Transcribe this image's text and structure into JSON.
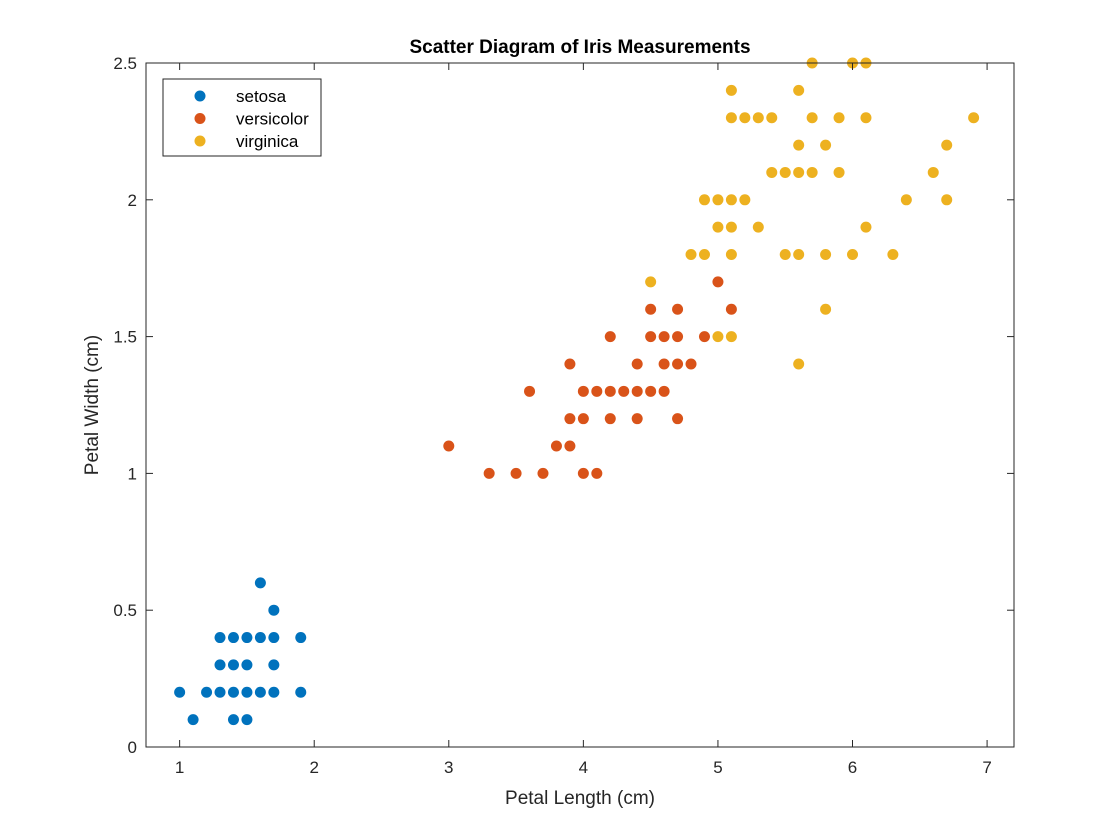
{
  "chart_data": {
    "type": "scatter",
    "title": "Scatter Diagram of Iris Measurements",
    "xlabel": "Petal Length (cm)",
    "ylabel": "Petal Width (cm)",
    "xlim": [
      0.75,
      7.2
    ],
    "ylim": [
      0,
      2.5
    ],
    "xticks": [
      1,
      2,
      3,
      4,
      5,
      6,
      7
    ],
    "yticks": [
      0,
      0.5,
      1,
      1.5,
      2,
      2.5
    ],
    "grid": false,
    "legend_position": "top-left",
    "series": [
      {
        "name": "setosa",
        "color": "#0072BD",
        "points": [
          [
            1.0,
            0.2
          ],
          [
            1.1,
            0.1
          ],
          [
            1.2,
            0.2
          ],
          [
            1.3,
            0.2
          ],
          [
            1.3,
            0.3
          ],
          [
            1.3,
            0.4
          ],
          [
            1.4,
            0.1
          ],
          [
            1.4,
            0.2
          ],
          [
            1.4,
            0.3
          ],
          [
            1.4,
            0.4
          ],
          [
            1.5,
            0.1
          ],
          [
            1.5,
            0.2
          ],
          [
            1.5,
            0.3
          ],
          [
            1.5,
            0.4
          ],
          [
            1.6,
            0.2
          ],
          [
            1.6,
            0.4
          ],
          [
            1.6,
            0.6
          ],
          [
            1.7,
            0.2
          ],
          [
            1.7,
            0.3
          ],
          [
            1.7,
            0.4
          ],
          [
            1.7,
            0.5
          ],
          [
            1.9,
            0.2
          ],
          [
            1.9,
            0.4
          ]
        ]
      },
      {
        "name": "versicolor",
        "color": "#D95319",
        "points": [
          [
            3.0,
            1.1
          ],
          [
            3.3,
            1.0
          ],
          [
            3.5,
            1.0
          ],
          [
            3.6,
            1.3
          ],
          [
            3.7,
            1.0
          ],
          [
            3.8,
            1.1
          ],
          [
            3.9,
            1.1
          ],
          [
            3.9,
            1.2
          ],
          [
            3.9,
            1.4
          ],
          [
            4.0,
            1.0
          ],
          [
            4.0,
            1.2
          ],
          [
            4.0,
            1.3
          ],
          [
            4.1,
            1.0
          ],
          [
            4.1,
            1.3
          ],
          [
            4.2,
            1.2
          ],
          [
            4.2,
            1.3
          ],
          [
            4.2,
            1.5
          ],
          [
            4.3,
            1.3
          ],
          [
            4.4,
            1.2
          ],
          [
            4.4,
            1.3
          ],
          [
            4.4,
            1.4
          ],
          [
            4.5,
            1.3
          ],
          [
            4.5,
            1.5
          ],
          [
            4.5,
            1.6
          ],
          [
            4.6,
            1.3
          ],
          [
            4.6,
            1.4
          ],
          [
            4.6,
            1.5
          ],
          [
            4.7,
            1.2
          ],
          [
            4.7,
            1.4
          ],
          [
            4.7,
            1.5
          ],
          [
            4.7,
            1.6
          ],
          [
            4.8,
            1.4
          ],
          [
            4.9,
            1.5
          ],
          [
            5.0,
            1.7
          ],
          [
            5.1,
            1.6
          ]
        ]
      },
      {
        "name": "virginica",
        "color": "#EDB120",
        "points": [
          [
            4.5,
            1.7
          ],
          [
            4.8,
            1.8
          ],
          [
            4.9,
            1.8
          ],
          [
            4.9,
            2.0
          ],
          [
            5.0,
            1.5
          ],
          [
            5.0,
            1.9
          ],
          [
            5.0,
            2.0
          ],
          [
            5.1,
            1.5
          ],
          [
            5.1,
            1.8
          ],
          [
            5.1,
            1.9
          ],
          [
            5.1,
            2.0
          ],
          [
            5.1,
            2.3
          ],
          [
            5.1,
            2.4
          ],
          [
            5.2,
            2.0
          ],
          [
            5.2,
            2.3
          ],
          [
            5.3,
            1.9
          ],
          [
            5.3,
            2.3
          ],
          [
            5.4,
            2.1
          ],
          [
            5.4,
            2.3
          ],
          [
            5.5,
            1.8
          ],
          [
            5.5,
            2.1
          ],
          [
            5.6,
            1.4
          ],
          [
            5.6,
            1.8
          ],
          [
            5.6,
            2.1
          ],
          [
            5.6,
            2.2
          ],
          [
            5.6,
            2.4
          ],
          [
            5.7,
            2.1
          ],
          [
            5.7,
            2.3
          ],
          [
            5.7,
            2.5
          ],
          [
            5.8,
            1.6
          ],
          [
            5.8,
            1.8
          ],
          [
            5.8,
            2.2
          ],
          [
            5.9,
            2.1
          ],
          [
            5.9,
            2.3
          ],
          [
            6.0,
            1.8
          ],
          [
            6.0,
            2.5
          ],
          [
            6.1,
            1.9
          ],
          [
            6.1,
            2.3
          ],
          [
            6.1,
            2.5
          ],
          [
            6.3,
            1.8
          ],
          [
            6.4,
            2.0
          ],
          [
            6.6,
            2.1
          ],
          [
            6.7,
            2.0
          ],
          [
            6.7,
            2.2
          ],
          [
            6.9,
            2.3
          ]
        ]
      }
    ]
  }
}
